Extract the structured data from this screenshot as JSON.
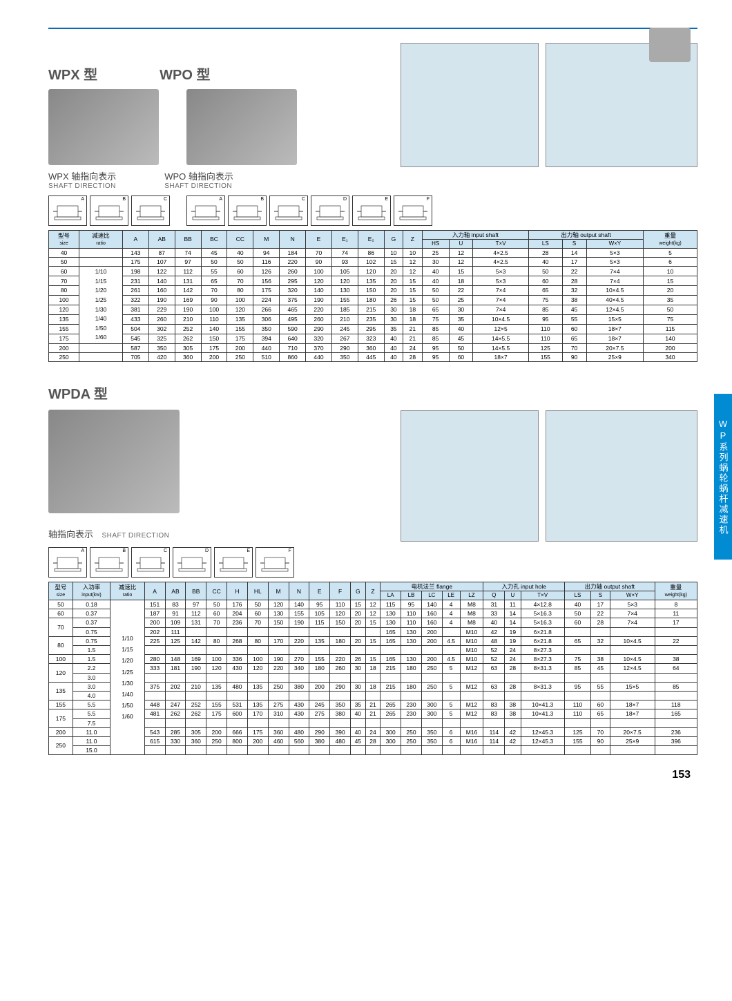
{
  "page_number": "153",
  "side_tab": "WP系列蜗轮蜗杆减速机",
  "hr_color": "#0a6ab5",
  "section1": {
    "title_wpx": "WPX  型",
    "title_wpo": "WPO  型",
    "sub_wpx": "WPX 轴指向表示",
    "sub_wpo": "WPO 轴指向表示",
    "sub_en": "SHAFT DIRECTION",
    "diag_labels_wpx": [
      "A",
      "B",
      "C"
    ],
    "diag_labels_wpo": [
      "A",
      "B",
      "C",
      "D",
      "E",
      "F"
    ]
  },
  "table1": {
    "header_bg": "#cde4f3",
    "head_r1": [
      "型号",
      "减速比",
      "A",
      "AB",
      "BB",
      "BC",
      "CC",
      "M",
      "N",
      "E",
      "E₁",
      "E₂",
      "G",
      "Z",
      "入力轴 input shaft",
      "",
      "",
      "出力轴 output shaft",
      "",
      "",
      "重量"
    ],
    "head_r1_sub": [
      "size",
      "ratio",
      "",
      "",
      "",
      "",
      "",
      "",
      "",
      "",
      "",
      "",
      "",
      "",
      "HS",
      "U",
      "T×V",
      "LS",
      "S",
      "W×Y",
      "weight(kg)"
    ],
    "ratios": [
      "1/10",
      "1/15",
      "1/20",
      "1/25",
      "1/30",
      "1/40",
      "1/50",
      "1/60"
    ],
    "rows": [
      [
        "40",
        "",
        "143",
        "87",
        "74",
        "45",
        "40",
        "94",
        "184",
        "70",
        "74",
        "86",
        "10",
        "10",
        "25",
        "12",
        "4×2.5",
        "28",
        "14",
        "5×3",
        "5"
      ],
      [
        "50",
        "",
        "175",
        "107",
        "97",
        "50",
        "50",
        "116",
        "220",
        "90",
        "93",
        "102",
        "15",
        "12",
        "30",
        "12",
        "4×2.5",
        "40",
        "17",
        "5×3",
        "6"
      ],
      [
        "60",
        "",
        "198",
        "122",
        "112",
        "55",
        "60",
        "126",
        "260",
        "100",
        "105",
        "120",
        "20",
        "12",
        "40",
        "15",
        "5×3",
        "50",
        "22",
        "7×4",
        "10"
      ],
      [
        "70",
        "",
        "231",
        "140",
        "131",
        "65",
        "70",
        "156",
        "295",
        "120",
        "120",
        "135",
        "20",
        "15",
        "40",
        "18",
        "5×3",
        "60",
        "28",
        "7×4",
        "15"
      ],
      [
        "80",
        "",
        "261",
        "160",
        "142",
        "70",
        "80",
        "175",
        "320",
        "140",
        "130",
        "150",
        "20",
        "15",
        "50",
        "22",
        "7×4",
        "65",
        "32",
        "10×4.5",
        "20"
      ],
      [
        "100",
        "",
        "322",
        "190",
        "169",
        "90",
        "100",
        "224",
        "375",
        "190",
        "155",
        "180",
        "26",
        "15",
        "50",
        "25",
        "7×4",
        "75",
        "38",
        "40×4.5",
        "35"
      ],
      [
        "120",
        "",
        "381",
        "229",
        "190",
        "100",
        "120",
        "266",
        "465",
        "220",
        "185",
        "215",
        "30",
        "18",
        "65",
        "30",
        "7×4",
        "85",
        "45",
        "12×4.5",
        "50"
      ],
      [
        "135",
        "",
        "433",
        "260",
        "210",
        "110",
        "135",
        "306",
        "495",
        "260",
        "210",
        "235",
        "30",
        "18",
        "75",
        "35",
        "10×4.5",
        "95",
        "55",
        "15×5",
        "75"
      ],
      [
        "155",
        "",
        "504",
        "302",
        "252",
        "140",
        "155",
        "350",
        "590",
        "290",
        "245",
        "295",
        "35",
        "21",
        "85",
        "40",
        "12×5",
        "110",
        "60",
        "18×7",
        "115"
      ],
      [
        "175",
        "",
        "545",
        "325",
        "262",
        "150",
        "175",
        "394",
        "640",
        "320",
        "267",
        "323",
        "40",
        "21",
        "85",
        "45",
        "14×5.5",
        "110",
        "65",
        "18×7",
        "140"
      ],
      [
        "200",
        "",
        "587",
        "350",
        "305",
        "175",
        "200",
        "440",
        "710",
        "370",
        "290",
        "360",
        "40",
        "24",
        "95",
        "50",
        "14×5.5",
        "125",
        "70",
        "20×7.5",
        "200"
      ],
      [
        "250",
        "",
        "705",
        "420",
        "360",
        "200",
        "250",
        "510",
        "860",
        "440",
        "350",
        "445",
        "40",
        "28",
        "95",
        "60",
        "18×7",
        "155",
        "90",
        "25×9",
        "340"
      ]
    ]
  },
  "section2": {
    "title": "WPDA  型",
    "sub": "轴指向表示",
    "sub_en": "SHAFT DIRECTION",
    "diag_labels": [
      "A",
      "B",
      "C",
      "D",
      "E",
      "F"
    ]
  },
  "table2": {
    "head_r1": [
      "型号",
      "入功率",
      "减速比",
      "A",
      "AB",
      "BB",
      "CC",
      "H",
      "HL",
      "M",
      "N",
      "E",
      "F",
      "G",
      "Z",
      "电机法兰 flange",
      "",
      "",
      "",
      "",
      "入力孔 input hole",
      "",
      "",
      "出力轴 output shaft",
      "",
      "",
      "重量"
    ],
    "head_r1_sub": [
      "size",
      "input(kw)",
      "ratio",
      "",
      "",
      "",
      "",
      "",
      "",
      "",
      "",
      "",
      "",
      "",
      "",
      "LA",
      "LB",
      "LC",
      "LE",
      "LZ",
      "Q",
      "U",
      "T×V",
      "LS",
      "S",
      "W×Y",
      "weight(kg)"
    ],
    "ratios": [
      "1/10",
      "1/15",
      "1/20",
      "1/25",
      "1/30",
      "1/40",
      "1/50",
      "1/60"
    ],
    "groups": [
      {
        "size": "50",
        "kw": [
          "0.18"
        ],
        "rows": [
          [
            "151",
            "83",
            "97",
            "50",
            "176",
            "50",
            "120",
            "140",
            "95",
            "110",
            "15",
            "12",
            "115",
            "95",
            "140",
            "4",
            "M8",
            "31",
            "11",
            "4×12.8",
            "40",
            "17",
            "5×3",
            "8"
          ]
        ]
      },
      {
        "size": "60",
        "kw": [
          "0.37"
        ],
        "rows": [
          [
            "187",
            "91",
            "112",
            "60",
            "204",
            "60",
            "130",
            "155",
            "105",
            "120",
            "20",
            "12",
            "130",
            "110",
            "160",
            "4",
            "M8",
            "33",
            "14",
            "5×16.3",
            "50",
            "22",
            "7×4",
            "11"
          ]
        ]
      },
      {
        "size": "70",
        "kw": [
          "0.37",
          "0.75"
        ],
        "rows": [
          [
            "200",
            "109",
            "131",
            "70",
            "236",
            "70",
            "150",
            "190",
            "115",
            "150",
            "20",
            "15",
            "130",
            "110",
            "160",
            "4",
            "M8",
            "40",
            "14",
            "5×16.3",
            "60",
            "28",
            "7×4",
            "17"
          ],
          [
            "202",
            "111",
            "",
            "",
            "",
            "",
            "",
            "",
            "",
            "",
            "",
            "",
            "165",
            "130",
            "200",
            "",
            "M10",
            "42",
            "19",
            "6×21.8",
            "",
            "",
            "",
            ""
          ]
        ]
      },
      {
        "size": "80",
        "kw": [
          "0.75",
          "1.5"
        ],
        "rows": [
          [
            "225",
            "125",
            "142",
            "80",
            "268",
            "80",
            "170",
            "220",
            "135",
            "180",
            "20",
            "15",
            "165",
            "130",
            "200",
            "4.5",
            "M10",
            "48",
            "19",
            "6×21.8",
            "65",
            "32",
            "10×4.5",
            "22"
          ],
          [
            "",
            "",
            "",
            "",
            "",
            "",
            "",
            "",
            "",
            "",
            "",
            "",
            "",
            "",
            "",
            "",
            "M10",
            "52",
            "24",
            "8×27.3",
            "",
            "",
            "",
            ""
          ]
        ]
      },
      {
        "size": "100",
        "kw": [
          "1.5"
        ],
        "rows": [
          [
            "280",
            "148",
            "169",
            "100",
            "336",
            "100",
            "190",
            "270",
            "155",
            "220",
            "26",
            "15",
            "165",
            "130",
            "200",
            "4.5",
            "M10",
            "52",
            "24",
            "8×27.3",
            "75",
            "38",
            "10×4.5",
            "38"
          ]
        ]
      },
      {
        "size": "120",
        "kw": [
          "2.2",
          "3.0"
        ],
        "rows": [
          [
            "333",
            "181",
            "190",
            "120",
            "430",
            "120",
            "220",
            "340",
            "180",
            "260",
            "30",
            "18",
            "215",
            "180",
            "250",
            "5",
            "M12",
            "63",
            "28",
            "8×31.3",
            "85",
            "45",
            "12×4.5",
            "64"
          ]
        ]
      },
      {
        "size": "135",
        "kw": [
          "3.0",
          "4.0"
        ],
        "rows": [
          [
            "375",
            "202",
            "210",
            "135",
            "480",
            "135",
            "250",
            "380",
            "200",
            "290",
            "30",
            "18",
            "215",
            "180",
            "250",
            "5",
            "M12",
            "63",
            "28",
            "8×31.3",
            "95",
            "55",
            "15×5",
            "85"
          ]
        ]
      },
      {
        "size": "155",
        "kw": [
          "5.5"
        ],
        "rows": [
          [
            "448",
            "247",
            "252",
            "155",
            "531",
            "135",
            "275",
            "430",
            "245",
            "350",
            "35",
            "21",
            "265",
            "230",
            "300",
            "5",
            "M12",
            "83",
            "38",
            "10×41.3",
            "110",
            "60",
            "18×7",
            "118"
          ]
        ]
      },
      {
        "size": "175",
        "kw": [
          "5.5",
          "7.5"
        ],
        "rows": [
          [
            "481",
            "262",
            "262",
            "175",
            "600",
            "170",
            "310",
            "430",
            "275",
            "380",
            "40",
            "21",
            "265",
            "230",
            "300",
            "5",
            "M12",
            "83",
            "38",
            "10×41.3",
            "110",
            "65",
            "18×7",
            "165"
          ]
        ]
      },
      {
        "size": "200",
        "kw": [
          "11.0"
        ],
        "rows": [
          [
            "543",
            "285",
            "305",
            "200",
            "666",
            "175",
            "360",
            "480",
            "290",
            "390",
            "40",
            "24",
            "300",
            "250",
            "350",
            "6",
            "M16",
            "114",
            "42",
            "12×45.3",
            "125",
            "70",
            "20×7.5",
            "236"
          ]
        ]
      },
      {
        "size": "250",
        "kw": [
          "11.0",
          "15.0"
        ],
        "rows": [
          [
            "615",
            "330",
            "360",
            "250",
            "800",
            "200",
            "460",
            "560",
            "380",
            "480",
            "45",
            "28",
            "300",
            "250",
            "350",
            "6",
            "M16",
            "114",
            "42",
            "12×45.3",
            "155",
            "90",
            "25×9",
            "396"
          ]
        ]
      }
    ]
  }
}
